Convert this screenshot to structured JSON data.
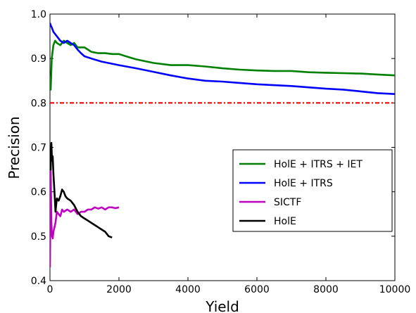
{
  "chart_data": {
    "type": "line",
    "title": "",
    "xlabel": "Yield",
    "ylabel": "Precision",
    "xlim": [
      0,
      10000
    ],
    "ylim": [
      0.4,
      1.0
    ],
    "xticks": [
      0,
      2000,
      4000,
      6000,
      8000,
      10000
    ],
    "yticks": [
      0.4,
      0.5,
      0.6,
      0.7,
      0.8,
      0.9,
      1.0
    ],
    "xtick_labels": [
      "0",
      "2000",
      "4000",
      "6000",
      "8000",
      "10000"
    ],
    "ytick_labels": [
      "0.4",
      "0.5",
      "0.6",
      "0.7",
      "0.8",
      "0.9",
      "1.0"
    ],
    "grid": false,
    "legend_position": "center-right",
    "reference_line": {
      "y": 0.8,
      "style": "dash-dot",
      "color": "#ff0000"
    },
    "series": [
      {
        "name": "HolE + ITRS + IET",
        "color": "#008000",
        "x": [
          0,
          20,
          50,
          100,
          150,
          200,
          300,
          400,
          500,
          600,
          700,
          800,
          900,
          1000,
          1200,
          1400,
          1600,
          1800,
          2000,
          2200,
          2500,
          3000,
          3500,
          4000,
          4500,
          5000,
          5500,
          6000,
          6500,
          7000,
          7500,
          8000,
          8500,
          9000,
          9500,
          10000
        ],
        "y": [
          0.86,
          0.83,
          0.9,
          0.93,
          0.94,
          0.935,
          0.93,
          0.94,
          0.935,
          0.93,
          0.935,
          0.925,
          0.925,
          0.925,
          0.915,
          0.912,
          0.912,
          0.91,
          0.91,
          0.905,
          0.898,
          0.89,
          0.885,
          0.885,
          0.882,
          0.878,
          0.875,
          0.873,
          0.872,
          0.872,
          0.869,
          0.868,
          0.867,
          0.866,
          0.864,
          0.862
        ]
      },
      {
        "name": "HolE + ITRS",
        "color": "#0000ff",
        "x": [
          0,
          20,
          50,
          100,
          200,
          300,
          400,
          500,
          600,
          700,
          800,
          900,
          1000,
          1200,
          1500,
          2000,
          2500,
          3000,
          3500,
          4000,
          4500,
          5000,
          5500,
          6000,
          6500,
          7000,
          7500,
          8000,
          8500,
          9000,
          9500,
          10000
        ],
        "y": [
          0.98,
          0.975,
          0.97,
          0.96,
          0.95,
          0.94,
          0.935,
          0.94,
          0.935,
          0.93,
          0.92,
          0.912,
          0.905,
          0.9,
          0.893,
          0.885,
          0.878,
          0.87,
          0.862,
          0.855,
          0.85,
          0.848,
          0.845,
          0.842,
          0.84,
          0.838,
          0.835,
          0.832,
          0.83,
          0.826,
          0.822,
          0.82
        ]
      },
      {
        "name": "SICTF",
        "color": "#c000c0",
        "x": [
          0,
          20,
          40,
          60,
          80,
          100,
          130,
          160,
          200,
          250,
          300,
          350,
          400,
          500,
          600,
          700,
          800,
          900,
          1000,
          1100,
          1200,
          1300,
          1400,
          1500,
          1600,
          1700,
          1800,
          1900,
          2000
        ],
        "y": [
          0.43,
          0.65,
          0.53,
          0.5,
          0.495,
          0.51,
          0.52,
          0.53,
          0.555,
          0.55,
          0.545,
          0.56,
          0.555,
          0.56,
          0.555,
          0.56,
          0.55,
          0.555,
          0.555,
          0.56,
          0.56,
          0.565,
          0.562,
          0.565,
          0.56,
          0.565,
          0.565,
          0.563,
          0.565
        ]
      },
      {
        "name": "HolE",
        "color": "#000000",
        "x": [
          0,
          20,
          40,
          60,
          80,
          100,
          130,
          160,
          200,
          250,
          300,
          350,
          400,
          450,
          500,
          600,
          700,
          800,
          900,
          1000,
          1100,
          1200,
          1300,
          1400,
          1500,
          1600,
          1700,
          1800
        ],
        "y": [
          0.7,
          0.65,
          0.71,
          0.67,
          0.68,
          0.64,
          0.6,
          0.555,
          0.585,
          0.58,
          0.59,
          0.605,
          0.6,
          0.59,
          0.585,
          0.58,
          0.57,
          0.555,
          0.545,
          0.54,
          0.535,
          0.53,
          0.525,
          0.52,
          0.515,
          0.51,
          0.5,
          0.497
        ]
      }
    ]
  }
}
